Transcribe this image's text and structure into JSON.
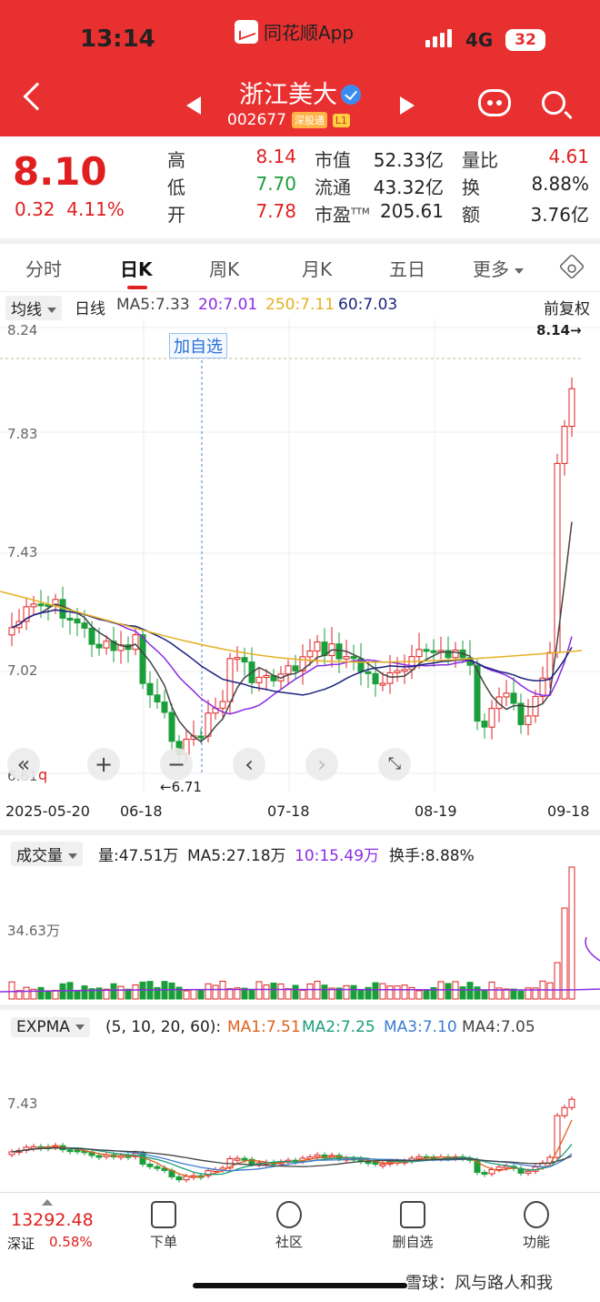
{
  "status_bar": {
    "time": "13:14",
    "app_name": "同花顺App",
    "network": "4G",
    "battery": "32"
  },
  "header": {
    "stock_name": "浙江美大",
    "code": "002677",
    "tag_connect": "深股通",
    "tag_level": "L1"
  },
  "quote": {
    "price": "8.10",
    "change": "0.32",
    "change_pct": "4.11%",
    "fields": [
      {
        "label": "高",
        "value": "8.14",
        "color": "red"
      },
      {
        "label": "低",
        "value": "7.70",
        "color": "green"
      },
      {
        "label": "开",
        "value": "7.78",
        "color": "red"
      },
      {
        "label": "市值",
        "value": "52.33亿"
      },
      {
        "label": "流通",
        "value": "43.32亿"
      },
      {
        "label": "市盈",
        "sup": "TTM",
        "value": "205.61"
      },
      {
        "label": "量比",
        "value": "4.61",
        "color": "red"
      },
      {
        "label": "换",
        "value": "8.88%"
      },
      {
        "label": "额",
        "value": "3.76亿"
      }
    ]
  },
  "tabs": [
    "分时",
    "日K",
    "周K",
    "月K",
    "五日",
    "更多"
  ],
  "active_tab": "日K",
  "ma_bar": {
    "selector": "均线",
    "period": "日线",
    "ma5": "MA5:7.33",
    "ma20": "20:7.01",
    "ma250": "250:7.11",
    "ma60": "60:7.03",
    "adjust": "前复权"
  },
  "kline": {
    "y_labels": [
      "8.24",
      "7.83",
      "7.43",
      "7.02",
      "6.61"
    ],
    "high_marker": "8.14→",
    "low_marker": "←6.71",
    "add_watch": "加自选",
    "dates": [
      "2025-05-20",
      "06-18",
      "07-18",
      "08-19",
      "09-18"
    ],
    "colors": {
      "up": "#e02020",
      "down": "#1a9e3a",
      "ma5": "#444444",
      "ma20": "#8a2be2",
      "ma250": "#e5b020",
      "ma60": "#1a237e"
    }
  },
  "volume": {
    "selector": "成交量",
    "vol": "量:47.51万",
    "ma5": "MA5:27.18万",
    "ma10": "10:15.49万",
    "turnover": "换手:8.88%",
    "y_label": "34.63万"
  },
  "expma": {
    "selector": "EXPMA",
    "params": "(5, 10, 20, 60):",
    "ma1": "MA1:7.51",
    "ma2": "MA2:7.25",
    "ma3": "MA3:7.10",
    "ma4": "MA4:7.05",
    "y_label": "7.43"
  },
  "bottom_nav": {
    "index_value": "13292.48",
    "index_name": "深证",
    "index_pct": "0.58%",
    "items": [
      "下单",
      "社区",
      "删自选",
      "功能"
    ]
  },
  "watermark": "雪球：风与路人和我"
}
